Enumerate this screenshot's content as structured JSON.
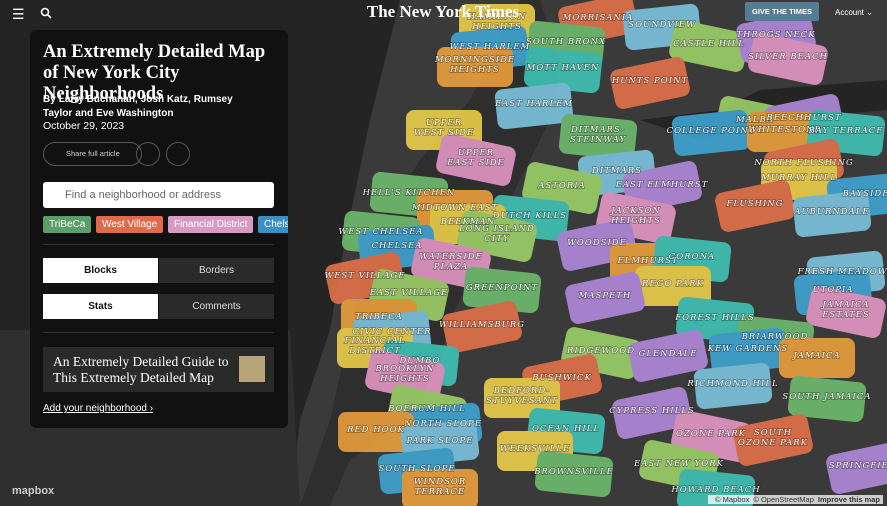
{
  "header": {
    "logo": "The New York Times",
    "give_button": "GIVE THE TIMES",
    "account": "Account"
  },
  "panel": {
    "title": "An Extremely Detailed Map of New York City Neighborhoods",
    "byline_prefix": "By",
    "authors": [
      "Larry Buchanan,",
      "Josh Katz,",
      "Rumsey Taylor",
      "and",
      "Eve Washington"
    ],
    "date": "October 29, 2023",
    "share": "Share full article",
    "search_placeholder": "Find a neighborhood or address",
    "chips": [
      "TriBeCa",
      "West Village",
      "Financial District",
      "Chelsea"
    ],
    "toggle_view": [
      "Blocks",
      "Borders"
    ],
    "toggle_panel": [
      "Stats",
      "Comments"
    ],
    "guide": "An Extremely Detailed Guide to This Extremely Detailed Map",
    "add_link": "Add your neighborhood ›"
  },
  "map": {
    "logo": "mapbox",
    "attribution": [
      "© Mapbox",
      "© OpenStreetMap",
      "Improve this map"
    ],
    "neighborhoods": [
      [
        "MORRISANIA"
      ],
      [
        "SOUNDVIEW"
      ],
      [
        "HAMILTON",
        "HEIGHTS"
      ],
      [
        "SOUTH BRONX"
      ],
      [
        "CASTLE HILL"
      ],
      [
        "THROGS NECK"
      ],
      [
        "WEST HARLEM"
      ],
      [
        "MORNINGSIDE",
        "HEIGHTS"
      ],
      [
        "MOTT HAVEN"
      ],
      [
        "SILVER BEACH"
      ],
      [
        "HUNTS POINT"
      ],
      [
        "EAST HARLEM"
      ],
      [
        "UPPER",
        "WEST SIDE"
      ],
      [
        "DITMARS-",
        "STEINWAY"
      ],
      [
        "MALBA"
      ],
      [
        "BEECHHURST"
      ],
      [
        "COLLEGE POINT"
      ],
      [
        "WHITESTONE"
      ],
      [
        "BAY TERRACE"
      ],
      [
        "UPPER",
        "EAST SIDE"
      ],
      [
        "NORTH FLUSHING"
      ],
      [
        "DITMARS"
      ],
      [
        "MURRAY HILL"
      ],
      [
        "HELL'S KITCHEN"
      ],
      [
        "ASTORIA"
      ],
      [
        "EAST ELMHURST"
      ],
      [
        "BAYSIDE"
      ],
      [
        "MIDTOWN EAST"
      ],
      [
        "DUTCH KILLS"
      ],
      [
        "JACKSON",
        "HEIGHTS"
      ],
      [
        "FLUSHING"
      ],
      [
        "AUBURNDALE"
      ],
      [
        "BEEKMAN"
      ],
      [
        "WEST CHELSEA"
      ],
      [
        "LONG ISLAND",
        "CITY"
      ],
      [
        "WOODSIDE"
      ],
      [
        "CHELSEA"
      ],
      [
        "ELMHURST"
      ],
      [
        "CORONA"
      ],
      [
        "WATERSIDE",
        "PLAZA"
      ],
      [
        "WEST VILLAGE"
      ],
      [
        "FRESH MEADOWS"
      ],
      [
        "REGO PARK"
      ],
      [
        "GREENPOINT"
      ],
      [
        "EAST VILLAGE"
      ],
      [
        "MASPETH"
      ],
      [
        "UTOPIA"
      ],
      [
        "TRIBECA"
      ],
      [
        "FOREST HILLS"
      ],
      [
        "JAMAICA",
        "ESTATES"
      ],
      [
        "WILLIAMSBURG"
      ],
      [
        "CIVIC CENTER"
      ],
      [
        "FINANCIAL",
        "DISTRICT"
      ],
      [
        "BRIARWOOD"
      ],
      [
        "RIDGEWOOD"
      ],
      [
        "GLENDALE"
      ],
      [
        "KEW GARDENS"
      ],
      [
        "JAMAICA"
      ],
      [
        "DUMBO"
      ],
      [
        "BROOKLYN",
        "HEIGHTS"
      ],
      [
        "BUSHWICK"
      ],
      [
        "RICHMOND HILL"
      ],
      [
        "BEDFORD-",
        "STUYVESANT"
      ],
      [
        "SOUTH JAMAICA"
      ],
      [
        "BOERUM HILL"
      ],
      [
        "CYPRESS HILLS"
      ],
      [
        "NORTH SLOPE"
      ],
      [
        "RED HOOK"
      ],
      [
        "OCEAN HILL"
      ],
      [
        "OZONE PARK"
      ],
      [
        "SOUTH",
        "OZONE PARK"
      ],
      [
        "PARK SLOPE"
      ],
      [
        "WEEKSVILLE"
      ],
      [
        "BROWNSVILLE"
      ],
      [
        "EAST NEW YORK"
      ],
      [
        "SPRINGFIELD"
      ],
      [
        "SOUTH SLOPE"
      ],
      [
        "WINDSOR",
        "TERRACE"
      ],
      [
        "HOWARD BEACH"
      ]
    ]
  }
}
